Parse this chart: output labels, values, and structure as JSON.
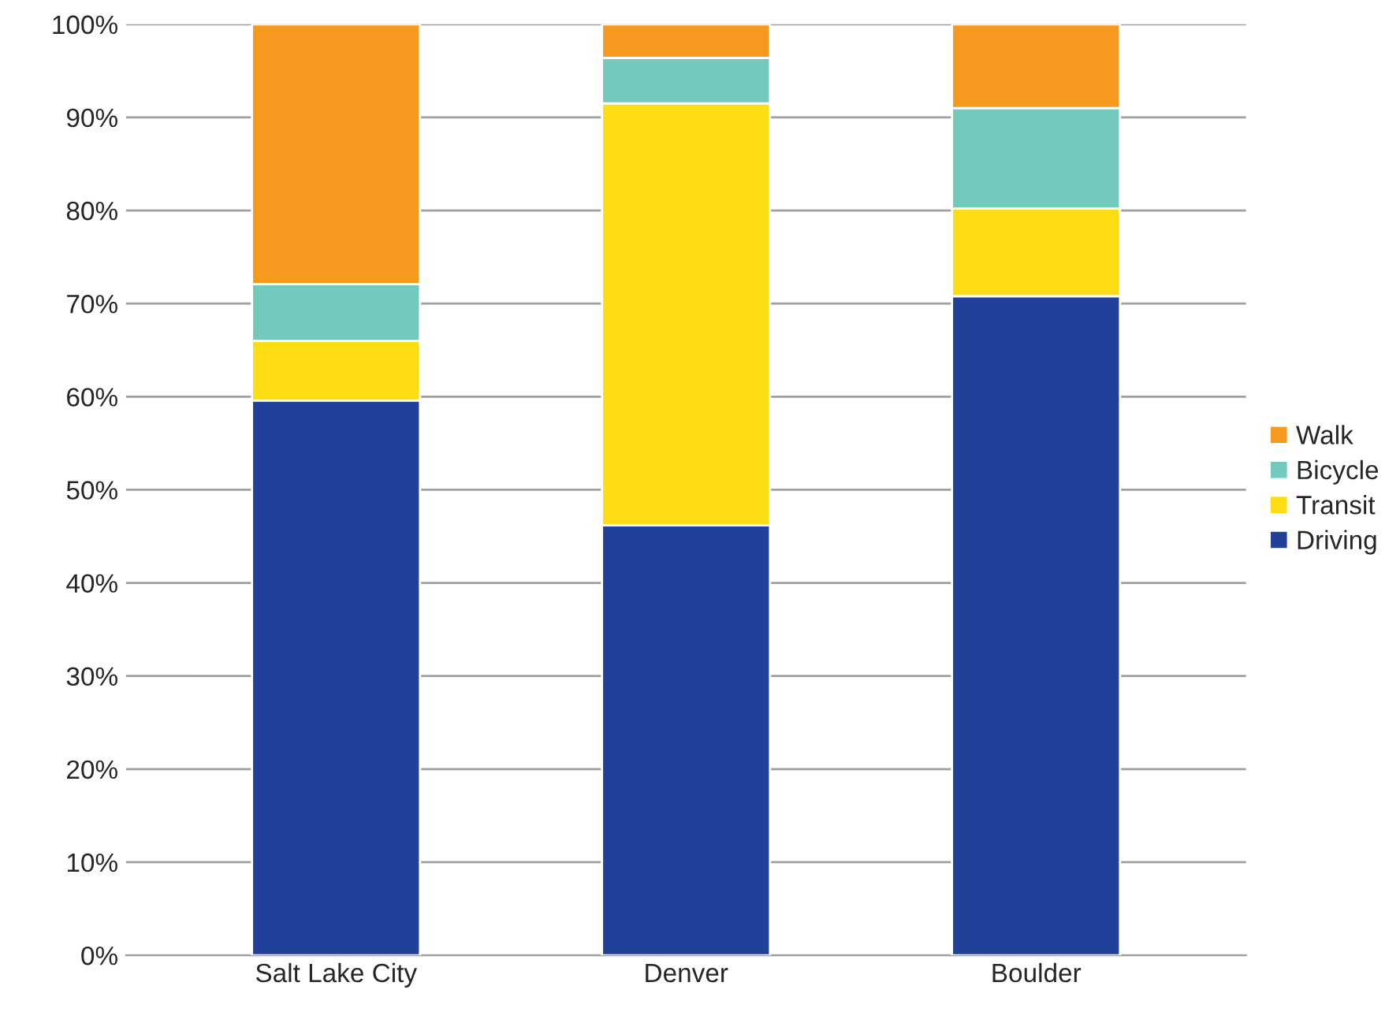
{
  "chart_data": {
    "type": "bar",
    "stacked": true,
    "categories": [
      "Salt Lake City",
      "Denver",
      "Boulder"
    ],
    "series": [
      {
        "name": "Driving",
        "color": "#21409a",
        "values": [
          59.6,
          46.2,
          70.8
        ]
      },
      {
        "name": "Transit",
        "color": "#ffdd15",
        "values": [
          6.4,
          45.3,
          9.4
        ]
      },
      {
        "name": "Bicycle",
        "color": "#72c9bc",
        "values": [
          6.1,
          4.9,
          10.8
        ]
      },
      {
        "name": "Walk",
        "color": "#f7991f",
        "values": [
          27.9,
          3.6,
          9.0
        ]
      }
    ],
    "ylim": [
      0,
      100
    ],
    "yticks": [
      {
        "value": 0,
        "label": "0%"
      },
      {
        "value": 10,
        "label": "10%"
      },
      {
        "value": 20,
        "label": "20%"
      },
      {
        "value": 30,
        "label": "30%"
      },
      {
        "value": 40,
        "label": "40%"
      },
      {
        "value": 50,
        "label": "50%"
      },
      {
        "value": 60,
        "label": "60%"
      },
      {
        "value": 70,
        "label": "70%"
      },
      {
        "value": 80,
        "label": "80%"
      },
      {
        "value": 90,
        "label": "90%"
      },
      {
        "value": 100,
        "label": "100%"
      }
    ],
    "grid": "y",
    "legend": "right"
  }
}
